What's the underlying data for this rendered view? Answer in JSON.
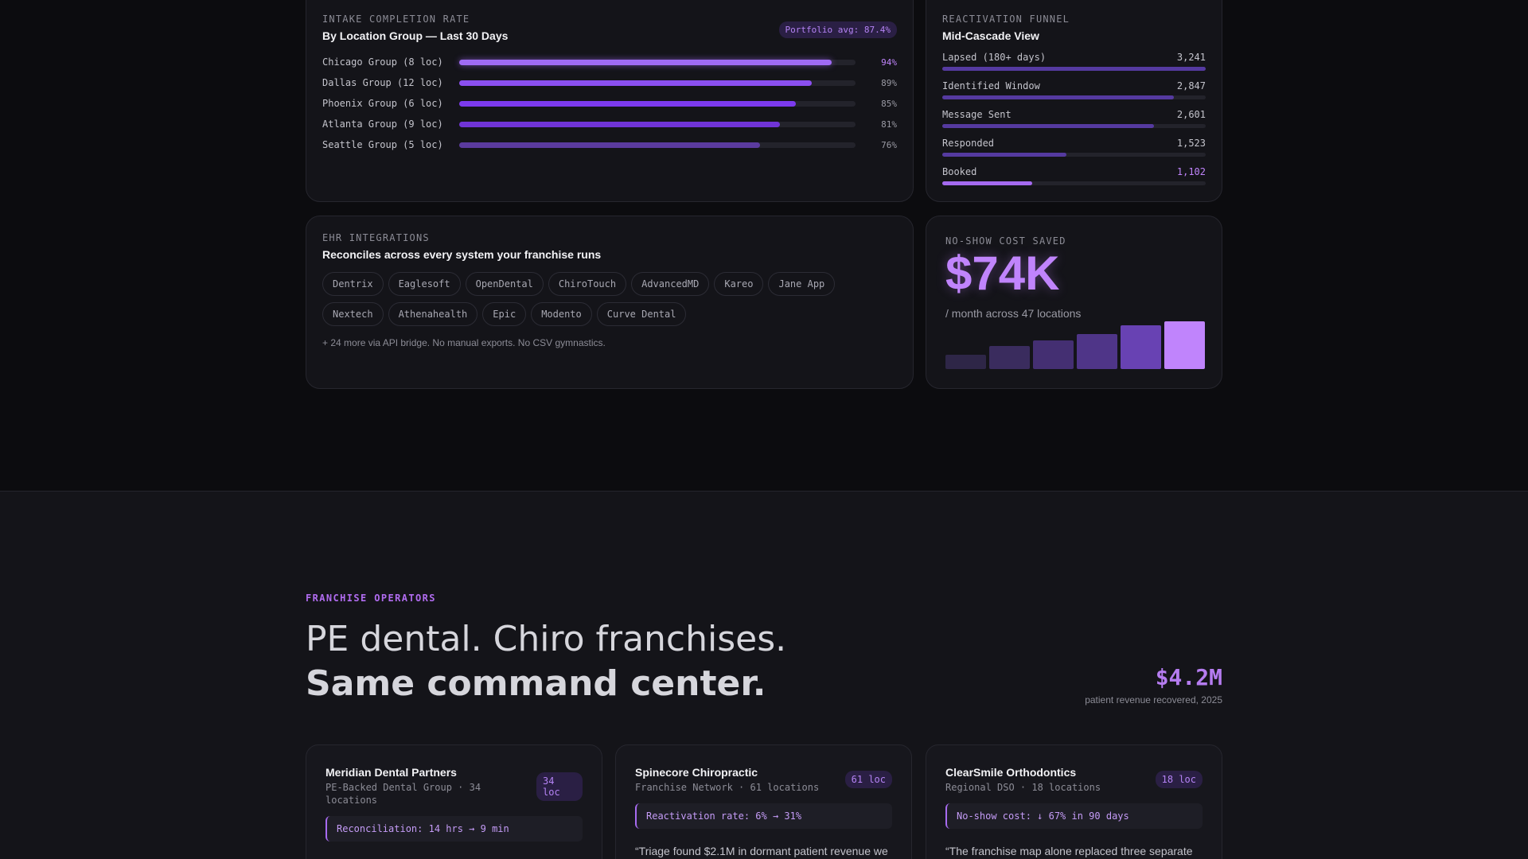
{
  "intake": {
    "eyebrow": "INTAKE COMPLETION RATE",
    "title": "By Location Group — Last 30 Days",
    "pill": "Portfolio avg: 87.4%",
    "rows": [
      {
        "label": "Chicago Group (8 loc)",
        "value": "94%",
        "pct": 94
      },
      {
        "label": "Dallas Group (12 loc)",
        "value": "89%",
        "pct": 89
      },
      {
        "label": "Phoenix Group (6 loc)",
        "value": "85%",
        "pct": 85
      },
      {
        "label": "Atlanta Group (9 loc)",
        "value": "81%",
        "pct": 81
      },
      {
        "label": "Seattle Group (5 loc)",
        "value": "76%",
        "pct": 76
      }
    ]
  },
  "funnel": {
    "eyebrow": "REACTIVATION FUNNEL",
    "title": "Mid-Cascade View",
    "stages": [
      {
        "label": "Lapsed (180+ days)",
        "value": "3,241",
        "count": 3241
      },
      {
        "label": "Identified Window",
        "value": "2,847",
        "count": 2847
      },
      {
        "label": "Message Sent",
        "value": "2,601",
        "count": 2601
      },
      {
        "label": "Responded",
        "value": "1,523",
        "count": 1523
      },
      {
        "label": "Booked",
        "value": "1,102",
        "count": 1102
      }
    ]
  },
  "ehr": {
    "eyebrow": "EHR INTEGRATIONS",
    "title": "Reconciles across every system your franchise runs",
    "chips": [
      "Dentrix",
      "Eaglesoft",
      "OpenDental",
      "ChiroTouch",
      "AdvancedMD",
      "Kareo",
      "Jane App",
      "Nextech",
      "Athenahealth",
      "Epic",
      "Modento",
      "Curve Dental"
    ],
    "footnote": "+ 24 more via API bridge. No manual exports. No CSV gymnastics."
  },
  "noshow": {
    "eyebrow": "NO-SHOW COST SAVED",
    "value": "$74K",
    "subtitle": "/ month across 47 locations",
    "trend": [
      0.3,
      0.48,
      0.6,
      0.74,
      0.92,
      1.0
    ],
    "colors": [
      "#2e2647",
      "#3a2c5e",
      "#442f72",
      "#4f3588",
      "#6842b3",
      "#c084fc"
    ]
  },
  "franchise": {
    "eyebrow": "FRANCHISE OPERATORS",
    "headline_line1": "PE dental. Chiro franchises.",
    "headline_line2": "Same command center.",
    "stat_value": "$4.2M",
    "stat_caption": "patient revenue recovered, 2025",
    "cards": [
      {
        "name": "Meridian Dental Partners",
        "sub": "PE-Backed Dental Group · 34 locations",
        "badge": "34 loc",
        "metric": "Reconciliation: 14 hrs → 9 min",
        "quote": ""
      },
      {
        "name": "Spinecore Chiropractic",
        "sub": "Franchise Network · 61 locations",
        "badge": "61 loc",
        "metric": "Reactivation rate: 6% → 31%",
        "quote": "“Triage found $2.1M in dormant patient revenue we"
      },
      {
        "name": "ClearSmile Orthodontics",
        "sub": "Regional DSO · 18 locations",
        "badge": "18 loc",
        "metric": "No-show cost: ↓ 67% in 90 days",
        "quote": "“The franchise map alone replaced three separate"
      }
    ]
  },
  "colors": {
    "accent": "#c084fc",
    "background": "#0c0c0f",
    "card": "#141419"
  }
}
